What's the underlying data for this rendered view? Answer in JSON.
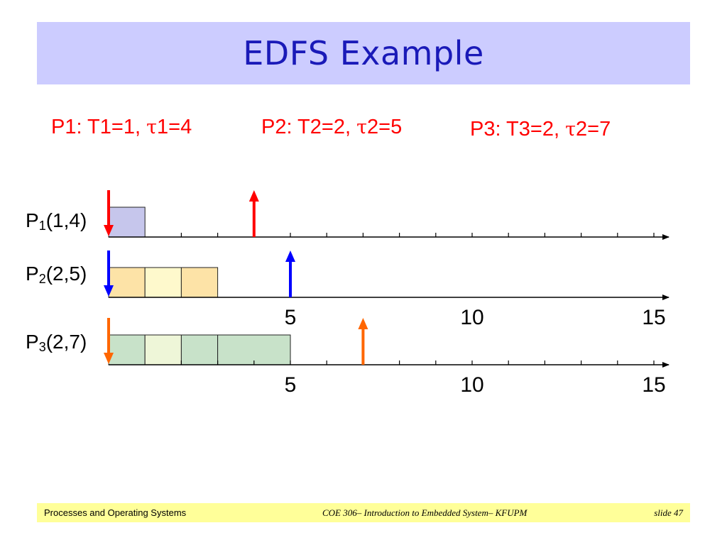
{
  "title": "EDFS Example",
  "params": {
    "p1": {
      "prefix": "P1: T1=1, ",
      "tau": "τ",
      "suffix": "1=4"
    },
    "p2": {
      "prefix": "P2: T2=2, ",
      "tau": "τ",
      "suffix": "2=5"
    },
    "p3": {
      "prefix": "P3: T3=2, ",
      "tau": "τ",
      "suffix": "2=7"
    }
  },
  "rows": [
    {
      "name": "P",
      "sub": "1",
      "args": "(1,4)",
      "color": "#ff0000",
      "release_time": 0,
      "deadline": 4,
      "blocks": [
        {
          "start": 0,
          "end": 1,
          "fill": "#c6c6ec"
        }
      ],
      "ticks": true,
      "tick_labels": []
    },
    {
      "name": "P",
      "sub": "2",
      "args": "(2,5)",
      "color": "#0000ff",
      "release_time": 0,
      "deadline": 5,
      "blocks": [
        {
          "start": 0,
          "end": 1,
          "fill": "#fde3a7"
        },
        {
          "start": 1,
          "end": 2,
          "fill": "#fef9cc"
        },
        {
          "start": 2,
          "end": 3,
          "fill": "#fde3a7"
        }
      ],
      "ticks": false,
      "tick_labels": [
        "5",
        "10",
        "15"
      ]
    },
    {
      "name": "P",
      "sub": "3",
      "args": "(2,7)",
      "color": "#ff6600",
      "release_time": 0,
      "deadline": 7,
      "blocks": [
        {
          "start": 0,
          "end": 1,
          "fill": "#c8e2c9"
        },
        {
          "start": 1,
          "end": 2,
          "fill": "#eef6d8"
        },
        {
          "start": 2,
          "end": 3,
          "fill": "#c8e2c9"
        },
        {
          "start": 3,
          "end": 5,
          "fill": "#c8e2c9"
        }
      ],
      "ticks": true,
      "tick_labels": [
        "5",
        "10",
        "15"
      ]
    }
  ],
  "axis_max": 15,
  "footer": {
    "left": "Processes and Operating Systems",
    "center": "COE 306– Introduction to Embedded System– KFUPM",
    "right": "slide 47"
  }
}
